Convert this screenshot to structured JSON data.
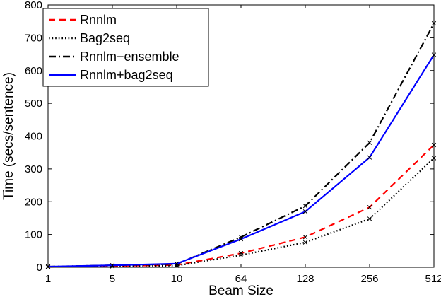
{
  "chart_data": {
    "type": "line",
    "title": "",
    "xlabel": "Beam Size",
    "ylabel": "Time (secs/sentence)",
    "x": [
      "1",
      "5",
      "10",
      "64",
      "128",
      "256",
      "512"
    ],
    "ylim": [
      0,
      800
    ],
    "yticks": [
      "0",
      "100",
      "200",
      "300",
      "400",
      "500",
      "600",
      "700",
      "800"
    ],
    "grid": false,
    "legend_position": "top-left",
    "series": [
      {
        "name": "Rnnlm",
        "values": [
          1,
          4,
          7,
          43,
          92,
          183,
          373
        ],
        "color": "#ff0000",
        "dash": "dashed"
      },
      {
        "name": "Bag2seq",
        "values": [
          1,
          3,
          5,
          37,
          76,
          148,
          333
        ],
        "color": "#000000",
        "dash": "dotted"
      },
      {
        "name": "Rnnlm−ensemble",
        "values": [
          2,
          6,
          10,
          92,
          187,
          380,
          744
        ],
        "color": "#000000",
        "dash": "dashdot"
      },
      {
        "name": "Rnnlm+bag2seq",
        "values": [
          2,
          6,
          11,
          86,
          170,
          335,
          648
        ],
        "color": "#0000ff",
        "dash": "solid"
      }
    ]
  }
}
